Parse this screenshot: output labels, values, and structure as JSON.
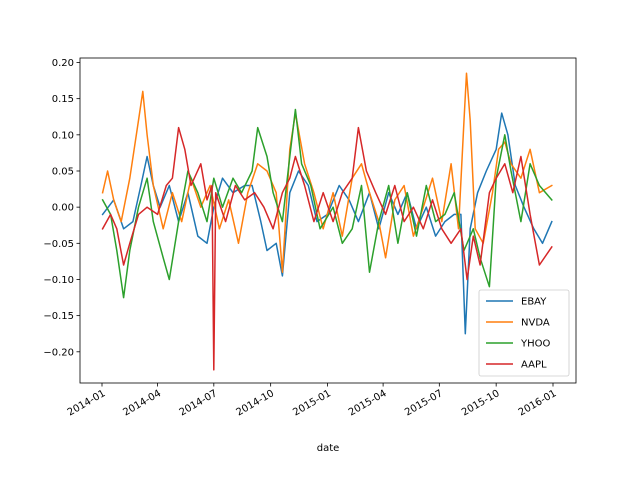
{
  "chart_data": {
    "type": "line",
    "title": "",
    "xlabel": "date",
    "ylabel": "",
    "xlim": [
      "2014-01-01",
      "2016-01-01"
    ],
    "ylim": [
      -0.23,
      0.2
    ],
    "grid": false,
    "legend_position": "lower right",
    "x_ticks": [
      "2014-01",
      "2014-04",
      "2014-07",
      "2014-10",
      "2015-01",
      "2015-04",
      "2015-07",
      "2015-10",
      "2016-01"
    ],
    "y_ticks": [
      0.2,
      0.15,
      0.1,
      0.05,
      0.0,
      -0.05,
      -0.1,
      -0.15,
      -0.2
    ],
    "y_tick_labels": [
      "0.20",
      "0.15",
      "0.10",
      "0.05",
      "0.00",
      "−0.05",
      "−0.10",
      "−0.15",
      "−0.20"
    ],
    "series": [
      {
        "name": "EBAY",
        "color": "#1f77b4",
        "points": [
          [
            "2014-01-02",
            -0.01
          ],
          [
            "2014-01-20",
            0.01
          ],
          [
            "2014-02-05",
            -0.03
          ],
          [
            "2014-02-20",
            -0.02
          ],
          [
            "2014-03-05",
            0.03
          ],
          [
            "2014-03-15",
            0.07
          ],
          [
            "2014-03-25",
            0.03
          ],
          [
            "2014-04-05",
            0.0
          ],
          [
            "2014-04-20",
            0.03
          ],
          [
            "2014-05-05",
            -0.02
          ],
          [
            "2014-05-20",
            0.02
          ],
          [
            "2014-06-05",
            -0.04
          ],
          [
            "2014-06-20",
            -0.05
          ],
          [
            "2014-07-01",
            0.0
          ],
          [
            "2014-07-15",
            0.04
          ],
          [
            "2014-08-01",
            0.02
          ],
          [
            "2014-08-20",
            0.03
          ],
          [
            "2014-09-01",
            0.03
          ],
          [
            "2014-09-15",
            -0.02
          ],
          [
            "2014-09-25",
            -0.06
          ],
          [
            "2014-10-10",
            -0.05
          ],
          [
            "2014-10-20",
            -0.095
          ],
          [
            "2014-11-01",
            0.02
          ],
          [
            "2014-11-15",
            0.05
          ],
          [
            "2014-12-01",
            0.03
          ],
          [
            "2014-12-15",
            -0.02
          ],
          [
            "2015-01-01",
            -0.01
          ],
          [
            "2015-01-20",
            0.03
          ],
          [
            "2015-02-05",
            0.01
          ],
          [
            "2015-02-20",
            -0.02
          ],
          [
            "2015-03-10",
            0.02
          ],
          [
            "2015-03-25",
            -0.03
          ],
          [
            "2015-04-10",
            0.02
          ],
          [
            "2015-04-25",
            -0.01
          ],
          [
            "2015-05-10",
            0.02
          ],
          [
            "2015-05-25",
            -0.03
          ],
          [
            "2015-06-10",
            0.0
          ],
          [
            "2015-06-25",
            -0.04
          ],
          [
            "2015-07-10",
            -0.02
          ],
          [
            "2015-07-25",
            -0.01
          ],
          [
            "2015-08-05",
            -0.01
          ],
          [
            "2015-08-12",
            -0.175
          ],
          [
            "2015-08-20",
            -0.03
          ],
          [
            "2015-09-01",
            0.02
          ],
          [
            "2015-09-15",
            0.05
          ],
          [
            "2015-10-01",
            0.08
          ],
          [
            "2015-10-10",
            0.13
          ],
          [
            "2015-10-20",
            0.1
          ],
          [
            "2015-11-01",
            0.03
          ],
          [
            "2015-11-15",
            0.0
          ],
          [
            "2015-12-01",
            -0.03
          ],
          [
            "2015-12-15",
            -0.05
          ],
          [
            "2015-12-30",
            -0.02
          ]
        ]
      },
      {
        "name": "NVDA",
        "color": "#ff7f0e",
        "points": [
          [
            "2014-01-02",
            0.02
          ],
          [
            "2014-01-10",
            0.05
          ],
          [
            "2014-01-20",
            0.01
          ],
          [
            "2014-02-01",
            -0.02
          ],
          [
            "2014-02-15",
            0.04
          ],
          [
            "2014-03-01",
            0.12
          ],
          [
            "2014-03-08",
            0.16
          ],
          [
            "2014-03-15",
            0.1
          ],
          [
            "2014-03-25",
            0.03
          ],
          [
            "2014-04-10",
            -0.03
          ],
          [
            "2014-04-25",
            0.02
          ],
          [
            "2014-05-10",
            -0.02
          ],
          [
            "2014-05-25",
            0.04
          ],
          [
            "2014-06-10",
            0.0
          ],
          [
            "2014-06-25",
            0.03
          ],
          [
            "2014-07-10",
            -0.03
          ],
          [
            "2014-07-25",
            0.01
          ],
          [
            "2014-08-10",
            -0.05
          ],
          [
            "2014-08-25",
            0.02
          ],
          [
            "2014-09-10",
            0.06
          ],
          [
            "2014-09-25",
            0.05
          ],
          [
            "2014-10-10",
            0.02
          ],
          [
            "2014-10-20",
            -0.09
          ],
          [
            "2014-11-01",
            0.08
          ],
          [
            "2014-11-10",
            0.13
          ],
          [
            "2014-11-25",
            0.06
          ],
          [
            "2014-12-10",
            0.02
          ],
          [
            "2014-12-25",
            -0.03
          ],
          [
            "2015-01-10",
            0.02
          ],
          [
            "2015-01-25",
            -0.04
          ],
          [
            "2015-02-10",
            0.04
          ],
          [
            "2015-02-25",
            0.06
          ],
          [
            "2015-03-10",
            0.02
          ],
          [
            "2015-03-25",
            -0.02
          ],
          [
            "2015-04-05",
            -0.07
          ],
          [
            "2015-04-20",
            0.01
          ],
          [
            "2015-05-05",
            0.03
          ],
          [
            "2015-05-20",
            -0.04
          ],
          [
            "2015-06-05",
            0.0
          ],
          [
            "2015-06-20",
            0.04
          ],
          [
            "2015-07-05",
            -0.02
          ],
          [
            "2015-07-20",
            0.06
          ],
          [
            "2015-08-01",
            -0.03
          ],
          [
            "2015-08-10",
            0.12
          ],
          [
            "2015-08-14",
            0.185
          ],
          [
            "2015-08-20",
            0.12
          ],
          [
            "2015-08-28",
            -0.03
          ],
          [
            "2015-09-10",
            -0.05
          ],
          [
            "2015-09-25",
            0.02
          ],
          [
            "2015-10-05",
            0.08
          ],
          [
            "2015-10-15",
            0.09
          ],
          [
            "2015-10-25",
            0.06
          ],
          [
            "2015-11-10",
            0.04
          ],
          [
            "2015-11-25",
            0.08
          ],
          [
            "2015-12-10",
            0.02
          ],
          [
            "2015-12-30",
            0.03
          ]
        ]
      },
      {
        "name": "YHOO",
        "color": "#2ca02c",
        "points": [
          [
            "2014-01-02",
            0.01
          ],
          [
            "2014-01-15",
            -0.01
          ],
          [
            "2014-01-25",
            -0.06
          ],
          [
            "2014-02-05",
            -0.125
          ],
          [
            "2014-02-15",
            -0.06
          ],
          [
            "2014-03-01",
            0.0
          ],
          [
            "2014-03-15",
            0.04
          ],
          [
            "2014-03-25",
            -0.02
          ],
          [
            "2014-04-10",
            -0.07
          ],
          [
            "2014-04-20",
            -0.1
          ],
          [
            "2014-05-05",
            -0.02
          ],
          [
            "2014-05-20",
            0.05
          ],
          [
            "2014-06-05",
            0.02
          ],
          [
            "2014-06-20",
            -0.02
          ],
          [
            "2014-07-01",
            0.04
          ],
          [
            "2014-07-15",
            0.0
          ],
          [
            "2014-08-01",
            0.04
          ],
          [
            "2014-08-15",
            0.02
          ],
          [
            "2014-09-01",
            0.05
          ],
          [
            "2014-09-10",
            0.11
          ],
          [
            "2014-09-25",
            0.07
          ],
          [
            "2014-10-05",
            0.02
          ],
          [
            "2014-10-20",
            -0.02
          ],
          [
            "2014-11-01",
            0.07
          ],
          [
            "2014-11-10",
            0.135
          ],
          [
            "2014-11-20",
            0.06
          ],
          [
            "2014-12-05",
            0.03
          ],
          [
            "2014-12-20",
            -0.03
          ],
          [
            "2015-01-10",
            0.0
          ],
          [
            "2015-01-25",
            -0.05
          ],
          [
            "2015-02-10",
            -0.03
          ],
          [
            "2015-02-25",
            0.03
          ],
          [
            "2015-03-10",
            -0.09
          ],
          [
            "2015-03-25",
            -0.02
          ],
          [
            "2015-04-10",
            0.03
          ],
          [
            "2015-04-25",
            -0.05
          ],
          [
            "2015-05-10",
            0.02
          ],
          [
            "2015-05-25",
            -0.04
          ],
          [
            "2015-06-10",
            0.03
          ],
          [
            "2015-06-25",
            -0.02
          ],
          [
            "2015-07-10",
            -0.01
          ],
          [
            "2015-07-25",
            0.02
          ],
          [
            "2015-08-10",
            -0.06
          ],
          [
            "2015-08-25",
            -0.03
          ],
          [
            "2015-09-05",
            -0.07
          ],
          [
            "2015-09-20",
            -0.11
          ],
          [
            "2015-10-01",
            0.04
          ],
          [
            "2015-10-15",
            0.1
          ],
          [
            "2015-10-25",
            0.05
          ],
          [
            "2015-11-10",
            -0.02
          ],
          [
            "2015-11-25",
            0.06
          ],
          [
            "2015-12-10",
            0.03
          ],
          [
            "2015-12-30",
            0.01
          ]
        ]
      },
      {
        "name": "AAPL",
        "color": "#d62728",
        "points": [
          [
            "2014-01-02",
            -0.03
          ],
          [
            "2014-01-15",
            -0.01
          ],
          [
            "2014-01-25",
            -0.03
          ],
          [
            "2014-02-05",
            -0.08
          ],
          [
            "2014-02-15",
            -0.05
          ],
          [
            "2014-03-01",
            -0.01
          ],
          [
            "2014-03-15",
            0.0
          ],
          [
            "2014-04-01",
            -0.01
          ],
          [
            "2014-04-15",
            0.03
          ],
          [
            "2014-04-25",
            0.04
          ],
          [
            "2014-05-05",
            0.11
          ],
          [
            "2014-05-15",
            0.08
          ],
          [
            "2014-05-25",
            0.03
          ],
          [
            "2014-06-10",
            0.06
          ],
          [
            "2014-06-20",
            0.01
          ],
          [
            "2014-06-28",
            0.03
          ],
          [
            "2014-07-01",
            -0.225
          ],
          [
            "2014-07-04",
            0.02
          ],
          [
            "2014-07-20",
            -0.02
          ],
          [
            "2014-08-05",
            0.03
          ],
          [
            "2014-08-20",
            0.01
          ],
          [
            "2014-09-05",
            0.02
          ],
          [
            "2014-09-20",
            0.0
          ],
          [
            "2014-10-05",
            -0.03
          ],
          [
            "2014-10-20",
            0.02
          ],
          [
            "2014-11-01",
            0.04
          ],
          [
            "2014-11-10",
            0.07
          ],
          [
            "2014-11-25",
            0.03
          ],
          [
            "2014-12-10",
            -0.02
          ],
          [
            "2014-12-25",
            0.02
          ],
          [
            "2015-01-10",
            -0.02
          ],
          [
            "2015-01-25",
            0.02
          ],
          [
            "2015-02-10",
            0.04
          ],
          [
            "2015-02-20",
            0.11
          ],
          [
            "2015-03-05",
            0.05
          ],
          [
            "2015-03-20",
            0.02
          ],
          [
            "2015-04-05",
            -0.01
          ],
          [
            "2015-04-20",
            0.03
          ],
          [
            "2015-05-05",
            -0.02
          ],
          [
            "2015-05-20",
            0.0
          ],
          [
            "2015-06-05",
            -0.03
          ],
          [
            "2015-06-20",
            0.01
          ],
          [
            "2015-07-05",
            -0.03
          ],
          [
            "2015-07-20",
            -0.05
          ],
          [
            "2015-08-05",
            -0.03
          ],
          [
            "2015-08-15",
            -0.1
          ],
          [
            "2015-08-25",
            -0.04
          ],
          [
            "2015-09-05",
            -0.08
          ],
          [
            "2015-09-20",
            0.02
          ],
          [
            "2015-10-01",
            0.04
          ],
          [
            "2015-10-15",
            0.06
          ],
          [
            "2015-10-28",
            0.02
          ],
          [
            "2015-11-10",
            0.07
          ],
          [
            "2015-11-25",
            -0.01
          ],
          [
            "2015-12-10",
            -0.08
          ],
          [
            "2015-12-30",
            -0.055
          ]
        ]
      }
    ]
  }
}
